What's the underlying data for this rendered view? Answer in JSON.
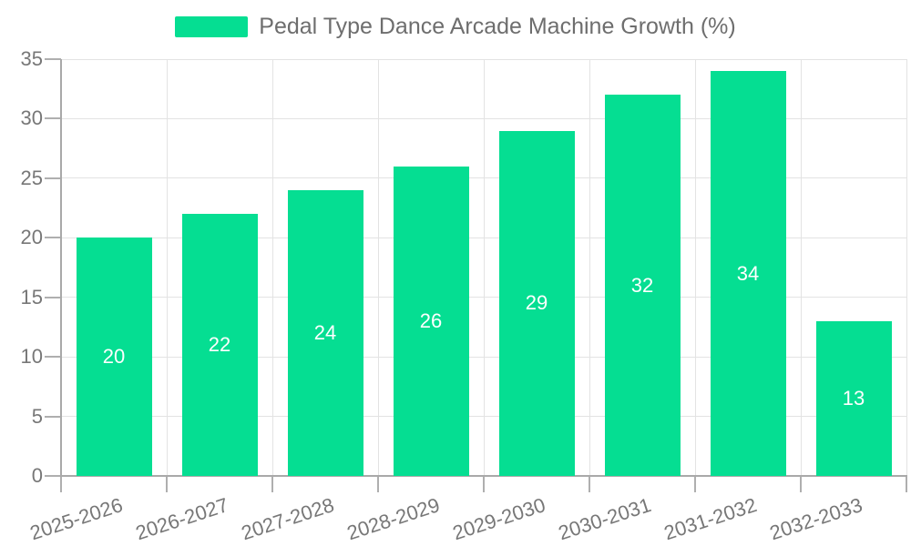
{
  "chart_data": {
    "type": "bar",
    "title": "Pedal Type Dance Arcade Machine Growth (%)",
    "categories": [
      "2025-2026",
      "2026-2027",
      "2027-2028",
      "2028-2029",
      "2029-2030",
      "2030-2031",
      "2031-2032",
      "2032-2033"
    ],
    "values": [
      20,
      22,
      24,
      26,
      29,
      32,
      34,
      13
    ],
    "xlabel": "",
    "ylabel": "",
    "ylim": [
      0,
      35
    ],
    "yticks": [
      0,
      5,
      10,
      15,
      20,
      25,
      30,
      35
    ],
    "grid": true,
    "legend_position": "top-center",
    "value_label_position": "inside-center",
    "x_label_rotation_deg": -18,
    "colors": {
      "bar": "#05de92",
      "value_label": "#ffffff",
      "grid_line": "#e3e3e3",
      "axis_line": "#a9a9a9",
      "tick_mark": "#afafaf",
      "tick_label": "#777777",
      "legend_text": "#6e6e6e",
      "background": "#ffffff"
    }
  }
}
